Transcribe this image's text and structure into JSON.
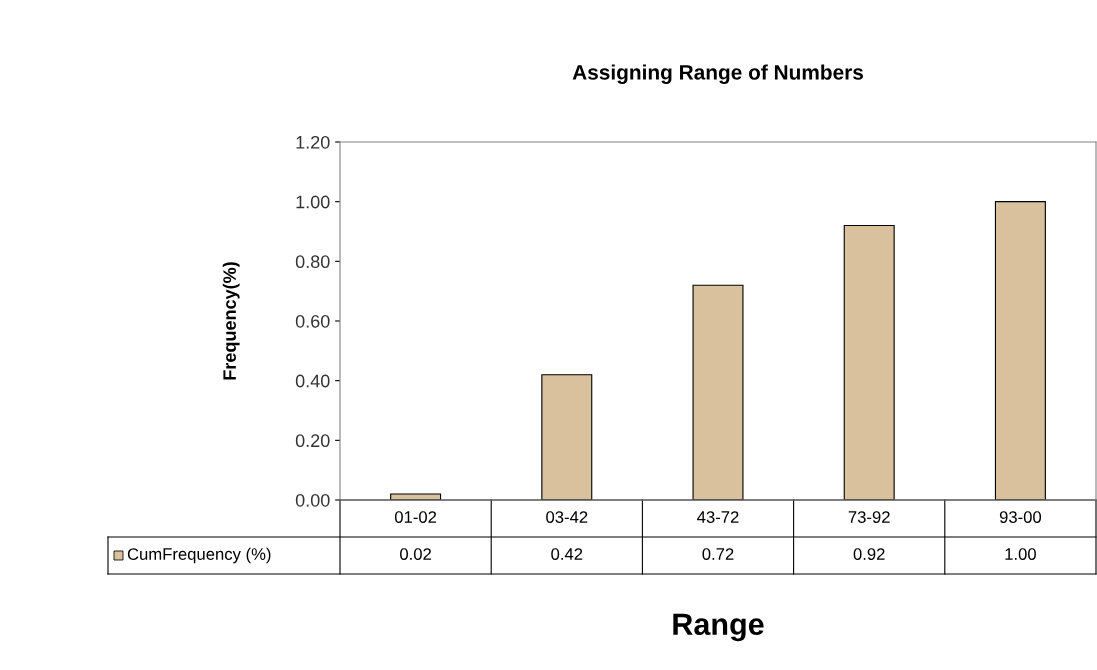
{
  "chart_data": {
    "type": "bar",
    "title": "Assigning Range of Numbers",
    "xlabel": "Range",
    "ylabel": "Frequency(%)",
    "categories": [
      "01-02",
      "03-42",
      "43-72",
      "73-92",
      "93-00"
    ],
    "series": [
      {
        "name": "CumFrequency (%)",
        "color": "#d8c19c",
        "values": [
          0.02,
          0.42,
          0.72,
          0.92,
          1.0
        ],
        "value_labels": [
          "0.02",
          "0.42",
          "0.72",
          "0.92",
          "1.00"
        ]
      }
    ],
    "ylim": [
      0,
      1.2
    ],
    "yticks": [
      {
        "value": 0,
        "label": "0.00"
      },
      {
        "value": 0.2,
        "label": "0.20"
      },
      {
        "value": 0.4,
        "label": "0.40"
      },
      {
        "value": 0.6,
        "label": "0.60"
      },
      {
        "value": 0.8,
        "label": "0.80"
      },
      {
        "value": 1.0,
        "label": "1.00"
      },
      {
        "value": 1.2,
        "label": "1.20"
      }
    ],
    "grid": false
  }
}
